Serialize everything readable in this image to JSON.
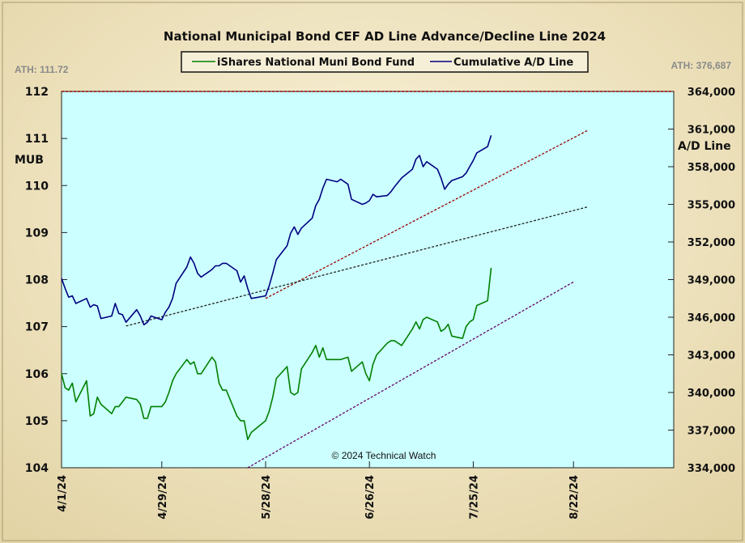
{
  "chart_data": {
    "type": "line",
    "title": "National Municipal Bond CEF AD Line Advance/Decline Line 2024",
    "ath_left": "ATH: 111.72",
    "ath_right": "ATH: 376,687",
    "ylabel_left": "MUB",
    "ylabel_right": "A/D Line",
    "credit": "© 2024 Technical Watch",
    "ylim_left": [
      104,
      112
    ],
    "ylim_right": [
      334000,
      364000
    ],
    "xlim": [
      "2024-04-01",
      "2024-09-19"
    ],
    "grid": false,
    "legend_position": "top-center",
    "background_color": "#ccffff",
    "yticks_left": [
      "112",
      "111",
      "110",
      "109",
      "108",
      "107",
      "106",
      "105",
      "104"
    ],
    "yticks_right": [
      "364,000",
      "361,000",
      "358,000",
      "355,000",
      "352,000",
      "349,000",
      "346,000",
      "343,000",
      "340,000",
      "337,000",
      "334,000"
    ],
    "xticks": [
      "4/1/24",
      "4/29/24",
      "5/28/24",
      "6/26/24",
      "7/25/24",
      "8/22/24"
    ],
    "series": [
      {
        "name": "iShares National Muni Bond Fund",
        "axis": "left",
        "color": "#008000",
        "x": [
          "2024-04-01",
          "2024-04-02",
          "2024-04-03",
          "2024-04-04",
          "2024-04-05",
          "2024-04-08",
          "2024-04-09",
          "2024-04-10",
          "2024-04-11",
          "2024-04-12",
          "2024-04-15",
          "2024-04-16",
          "2024-04-17",
          "2024-04-18",
          "2024-04-19",
          "2024-04-22",
          "2024-04-23",
          "2024-04-24",
          "2024-04-25",
          "2024-04-26",
          "2024-04-29",
          "2024-04-30",
          "2024-05-01",
          "2024-05-02",
          "2024-05-03",
          "2024-05-06",
          "2024-05-07",
          "2024-05-08",
          "2024-05-09",
          "2024-05-10",
          "2024-05-13",
          "2024-05-14",
          "2024-05-15",
          "2024-05-16",
          "2024-05-17",
          "2024-05-20",
          "2024-05-21",
          "2024-05-22",
          "2024-05-23",
          "2024-05-24",
          "2024-05-28",
          "2024-05-29",
          "2024-05-30",
          "2024-05-31",
          "2024-06-03",
          "2024-06-04",
          "2024-06-05",
          "2024-06-06",
          "2024-06-07",
          "2024-06-10",
          "2024-06-11",
          "2024-06-12",
          "2024-06-13",
          "2024-06-14",
          "2024-06-17",
          "2024-06-18",
          "2024-06-20",
          "2024-06-21",
          "2024-06-24",
          "2024-06-25",
          "2024-06-26",
          "2024-06-27",
          "2024-06-28",
          "2024-07-01",
          "2024-07-02",
          "2024-07-03",
          "2024-07-05",
          "2024-07-08",
          "2024-07-09",
          "2024-07-10",
          "2024-07-11",
          "2024-07-12",
          "2024-07-15",
          "2024-07-16",
          "2024-07-17",
          "2024-07-18",
          "2024-07-19",
          "2024-07-22",
          "2024-07-23",
          "2024-07-24",
          "2024-07-25",
          "2024-07-26",
          "2024-07-29",
          "2024-07-30",
          "2024-07-31",
          "2024-08-01",
          "2024-08-02"
        ],
        "values": [
          106.0,
          105.7,
          105.65,
          105.8,
          105.4,
          105.85,
          105.1,
          105.15,
          105.5,
          105.35,
          105.15,
          105.3,
          105.3,
          105.4,
          105.5,
          105.45,
          105.35,
          105.05,
          105.05,
          105.3,
          105.3,
          105.4,
          105.6,
          105.85,
          106.0,
          106.3,
          106.2,
          106.25,
          106.0,
          106.0,
          106.35,
          106.25,
          105.8,
          105.65,
          105.65,
          105.1,
          105.0,
          105.0,
          104.6,
          104.75,
          105.0,
          105.2,
          105.5,
          105.9,
          106.15,
          105.6,
          105.55,
          105.6,
          106.1,
          106.45,
          106.6,
          106.35,
          106.55,
          106.3,
          106.3,
          106.3,
          106.35,
          106.05,
          106.25,
          106.0,
          105.85,
          106.2,
          106.4,
          106.65,
          106.7,
          106.7,
          106.6,
          106.95,
          107.1,
          106.95,
          107.15,
          107.2,
          107.1,
          106.9,
          106.95,
          107.05,
          106.8,
          106.75,
          107.0,
          107.1,
          107.15,
          107.45,
          107.55,
          108.25,
          null,
          null,
          null
        ],
        "x_trim": 84
      },
      {
        "name": "Cumulative A/D Line",
        "axis": "right",
        "color": "#000080",
        "values": [
          349.1,
          348.3,
          347.6,
          347.7,
          347.1,
          347.5,
          346.8,
          347.0,
          346.9,
          345.9,
          346.1,
          347.1,
          346.3,
          346.2,
          345.6,
          346.6,
          346.1,
          345.4,
          345.6,
          346.1,
          345.8,
          346.4,
          346.8,
          347.5,
          348.7,
          350.0,
          350.8,
          350.3,
          349.5,
          349.2,
          349.8,
          350.1,
          350.1,
          350.3,
          350.3,
          349.7,
          348.8,
          349.3,
          348.3,
          347.5,
          347.7,
          348.5,
          349.5,
          350.6,
          351.7,
          352.7,
          353.2,
          352.6,
          353.1,
          353.9,
          354.9,
          355.4,
          356.3,
          357.0,
          356.8,
          357.0,
          356.6,
          355.4,
          355.0,
          355.1,
          355.3,
          355.8,
          355.6,
          355.7,
          356.0,
          356.4,
          357.1,
          357.8,
          358.6,
          358.9,
          358.0,
          358.4,
          357.8,
          357.1,
          356.2,
          356.6,
          356.9,
          357.2,
          357.5,
          358.0,
          358.5,
          359.1,
          359.6,
          360.5,
          null,
          null,
          null
        ]
      }
    ],
    "trendlines": [
      {
        "name": "AD upper trendline",
        "axis": "right",
        "color": "#990000",
        "from": [
          "2024-05-28",
          347.5
        ],
        "to": [
          "2024-08-26",
          360.9
        ]
      },
      {
        "name": "AD lower trendline",
        "axis": "right",
        "color": "#222222",
        "from": [
          "2024-04-19",
          345.3
        ],
        "to": [
          "2024-08-26",
          354.8
        ]
      },
      {
        "name": "MUB trendline",
        "axis": "left",
        "color": "#660066",
        "from": [
          "2024-05-23",
          104.0
        ],
        "to": [
          "2024-08-22",
          107.95
        ]
      },
      {
        "name": "ATH line",
        "axis": "left",
        "color": "#990000",
        "from": [
          "2024-04-01",
          112
        ],
        "to": [
          "2024-09-19",
          112
        ]
      }
    ]
  }
}
